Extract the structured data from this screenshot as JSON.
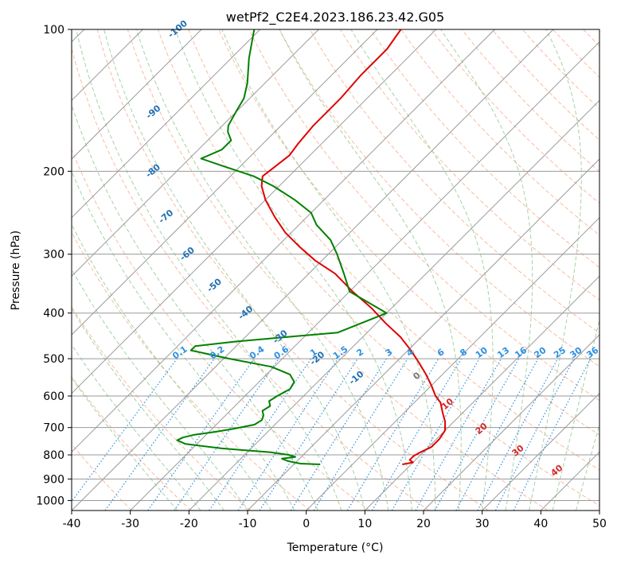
{
  "chart_data": {
    "type": "line",
    "title": "wetPf2_C2E4.2023.186.23.42.G05",
    "xlabel": "Temperature (°C)",
    "ylabel": "Pressure (hPa)",
    "xlim": [
      -40,
      50
    ],
    "ylim": [
      1050,
      100
    ],
    "y_scale": "log",
    "grid": true,
    "x_ticks": [
      -40,
      -30,
      -20,
      -10,
      0,
      10,
      20,
      30,
      40,
      50
    ],
    "y_ticks": [
      1000,
      900,
      800,
      700,
      600,
      500,
      400,
      300,
      200,
      100
    ],
    "colors": {
      "temperature": "#e00000",
      "dewpoint": "#008000",
      "isotherm": "#9a9a9a",
      "dry_adiabat": "#f4a582",
      "moist_adiabat": "#8fc78f",
      "mixing_ratio": "#2c8fe3",
      "theta_label": "#1f6fb4",
      "pos_label": "#d62728",
      "zero_label": "#777777"
    },
    "series": [
      {
        "key": "temperature",
        "pressure": [
          838,
          830,
          820,
          805,
          790,
          770,
          740,
          710,
          680,
          650,
          620,
          600,
          570,
          540,
          510,
          480,
          450,
          420,
          390,
          360,
          330,
          310,
          290,
          270,
          250,
          230,
          215,
          205,
          195,
          185,
          175,
          160,
          140,
          125,
          110,
          100
        ],
        "temp": [
          8.5,
          10,
          9,
          9,
          9.5,
          10.5,
          10.5,
          10,
          8.5,
          6.5,
          4.5,
          2.5,
          0,
          -2.8,
          -6,
          -9.5,
          -13.5,
          -18.5,
          -23.5,
          -29.5,
          -35.5,
          -41,
          -46,
          -51,
          -55.5,
          -60,
          -63,
          -64.5,
          -64,
          -63.5,
          -64,
          -64.5,
          -64.5,
          -65,
          -65,
          -66
        ]
      },
      {
        "key": "dewpoint",
        "pressure": [
          838,
          835,
          825,
          815,
          808,
          800,
          790,
          775,
          758,
          745,
          735,
          725,
          715,
          705,
          690,
          675,
          660,
          645,
          630,
          615,
          600,
          580,
          560,
          540,
          520,
          500,
          480,
          470,
          460,
          440,
          400,
          360,
          330,
          300,
          280,
          260,
          245,
          230,
          215,
          205,
          195,
          188,
          180,
          172,
          165,
          160,
          150,
          140,
          130,
          115,
          100
        ],
        "temp": [
          -5.5,
          -9,
          -11.5,
          -13,
          -11,
          -12.5,
          -16,
          -25,
          -32,
          -34,
          -33.5,
          -32,
          -29,
          -26.5,
          -23.5,
          -23,
          -23.5,
          -24.5,
          -24,
          -25,
          -24.5,
          -23.5,
          -24,
          -26,
          -30.5,
          -39,
          -47,
          -47,
          -41,
          -25,
          -20,
          -30,
          -34,
          -38.5,
          -42,
          -47,
          -50,
          -55,
          -61,
          -66,
          -73,
          -78,
          -76,
          -76,
          -78,
          -79,
          -80,
          -81,
          -83,
          -87,
          -91
        ]
      }
    ],
    "theta_labels": [
      "-100",
      "-90",
      "-80",
      "-70",
      "-60",
      "-50",
      "-40",
      "-30",
      "-20",
      "-10",
      "0",
      "10",
      "20",
      "30",
      "40"
    ],
    "mixing_ratio_labels": [
      "0.1",
      "0.2",
      "0.4",
      "0.6",
      "1",
      "1.5",
      "2",
      "3",
      "4",
      "6",
      "8",
      "10",
      "13",
      "16",
      "20",
      "25",
      "30",
      "36"
    ]
  }
}
